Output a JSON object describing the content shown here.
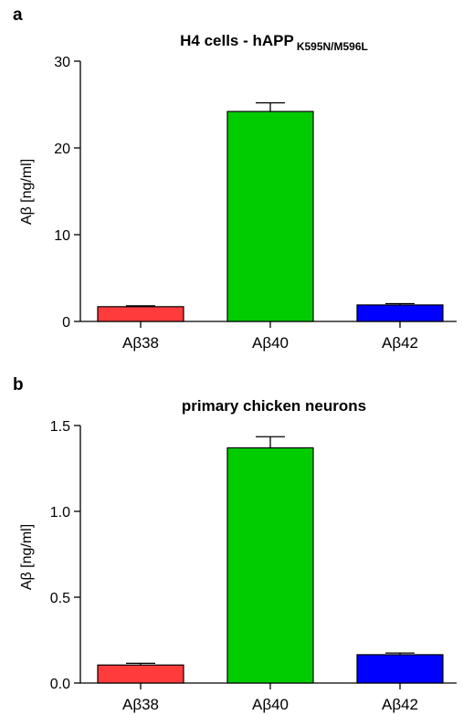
{
  "chart_data": [
    {
      "panel": "a",
      "type": "bar",
      "title": "H4 cells - hAPP",
      "title_subscript": "K595N/M596L",
      "ylabel": "Aβ [ng/ml]",
      "xlabel": "",
      "categories": [
        "Aβ38",
        "Aβ40",
        "Aβ42"
      ],
      "values": [
        1.7,
        24.2,
        1.9
      ],
      "errors": [
        0.1,
        1.0,
        0.15
      ],
      "colors": [
        "#ff3b3b",
        "#00cc00",
        "#0000ff"
      ],
      "ylim": [
        0,
        30
      ],
      "yticks": [
        0,
        10,
        20,
        30
      ],
      "ytick_labels": [
        "0",
        "10",
        "20",
        "30"
      ],
      "grid": false
    },
    {
      "panel": "b",
      "type": "bar",
      "title": "primary chicken neurons",
      "title_subscript": "",
      "ylabel": "Aβ [ng/ml]",
      "xlabel": "",
      "categories": [
        "Aβ38",
        "Aβ40",
        "Aβ42"
      ],
      "values": [
        0.105,
        1.37,
        0.165
      ],
      "errors": [
        0.01,
        0.065,
        0.01
      ],
      "colors": [
        "#ff3b3b",
        "#00cc00",
        "#0000ff"
      ],
      "ylim": [
        0,
        1.5
      ],
      "yticks": [
        0,
        0.5,
        1.0,
        1.5
      ],
      "ytick_labels": [
        "0.0",
        "0.5",
        "1.0",
        "1.5"
      ],
      "grid": false
    }
  ]
}
